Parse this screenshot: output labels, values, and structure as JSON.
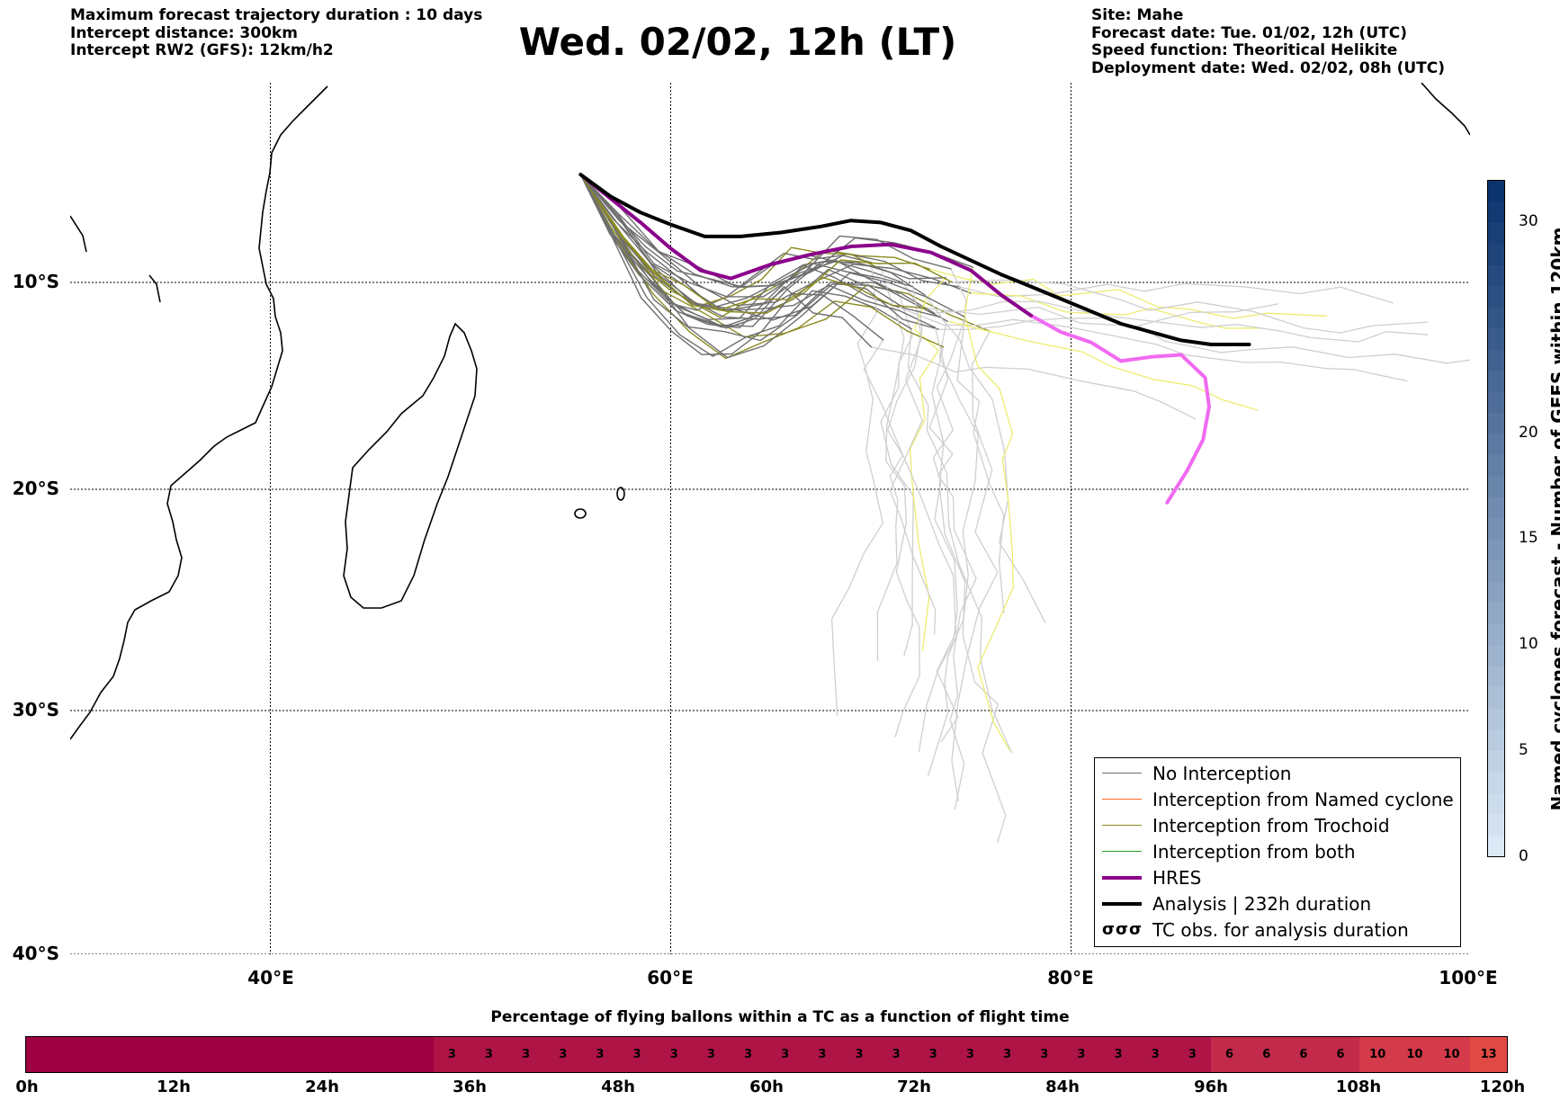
{
  "header": {
    "left_lines": [
      "Maximum forecast trajectory duration : 10 days",
      "Intercept distance: 300km",
      "Intercept RW2 (GFS):  12km/h2"
    ],
    "title": "Wed. 02/02, 12h (LT)",
    "right_lines": [
      "Site: Mahe",
      "Forecast date: Tue. 01/02, 12h (UTC)",
      "Speed function: Theoritical Helikite",
      "Deployment date: Wed. 02/02, 08h (UTC)"
    ]
  },
  "map": {
    "lon_labels": [
      "40°E",
      "60°E",
      "80°E",
      "100°E"
    ],
    "lat_labels": [
      "10°S",
      "20°S",
      "30°S",
      "40°S"
    ],
    "lon_values": [
      40,
      60,
      80,
      100
    ],
    "lat_values": [
      -10,
      -20,
      -30,
      -40
    ],
    "launch_site": {
      "lon": 55.5,
      "lat": -4.6
    },
    "colors": {
      "no_interception": "#6e6e6e",
      "named_cyclone": "#ff6a2a",
      "trochoid": "#8a8a20",
      "both": "#2a9a2a",
      "hres": "#8b008b",
      "analysis": "#000000",
      "after_window_hres": "#f06af0",
      "after_window_ens": "#cfcfcf",
      "after_window_trochoid": "#ecec70"
    },
    "analysis_track": [
      [
        55.5,
        -4.6
      ],
      [
        57,
        -5.7
      ],
      [
        58.5,
        -6.5
      ],
      [
        60,
        -7.1
      ],
      [
        61.7,
        -7.7
      ],
      [
        63.5,
        -7.7
      ],
      [
        65.5,
        -7.5
      ],
      [
        67.5,
        -7.2
      ],
      [
        69,
        -6.9
      ],
      [
        70.5,
        -7.0
      ],
      [
        72,
        -7.4
      ],
      [
        73.5,
        -8.2
      ],
      [
        75,
        -8.9
      ],
      [
        76.5,
        -9.6
      ],
      [
        78,
        -10.2
      ],
      [
        79.5,
        -10.8
      ],
      [
        81,
        -11.4
      ],
      [
        82.5,
        -12.0
      ],
      [
        84,
        -12.4
      ],
      [
        85.5,
        -12.8
      ],
      [
        87,
        -13.0
      ],
      [
        88.9,
        -13.0
      ]
    ],
    "hres_track": [
      [
        55.5,
        -4.6
      ],
      [
        57,
        -5.8
      ],
      [
        58.5,
        -7.0
      ],
      [
        60,
        -8.3
      ],
      [
        61.5,
        -9.4
      ],
      [
        63,
        -9.8
      ],
      [
        65,
        -9.1
      ],
      [
        67,
        -8.6
      ],
      [
        69,
        -8.2
      ],
      [
        71,
        -8.1
      ],
      [
        73,
        -8.5
      ],
      [
        75,
        -9.4
      ],
      [
        76.5,
        -10.6
      ],
      [
        78,
        -11.6
      ]
    ],
    "hres_after": [
      [
        78,
        -11.6
      ],
      [
        79.5,
        -12.4
      ],
      [
        81,
        -12.9
      ],
      [
        82.5,
        -13.8
      ],
      [
        84,
        -13.6
      ],
      [
        85.5,
        -13.5
      ],
      [
        86.7,
        -14.6
      ],
      [
        86.9,
        -16.0
      ],
      [
        86.6,
        -17.6
      ],
      [
        85.8,
        -19.1
      ],
      [
        84.8,
        -20.6
      ]
    ]
  },
  "legend": {
    "items": [
      {
        "label": "No Interception",
        "color": "#6e6e6e",
        "width": 1.5
      },
      {
        "label": "Interception from Named cyclone",
        "color": "#ff6a2a",
        "width": 1.5
      },
      {
        "label": "Interception from Trochoid",
        "color": "#8a8a20",
        "width": 1.5
      },
      {
        "label": "Interception from both",
        "color": "#2a9a2a",
        "width": 1.5
      },
      {
        "label": "HRES",
        "color": "#8b008b",
        "width": 4
      },
      {
        "label": "Analysis | 232h duration",
        "color": "#000000",
        "width": 4
      }
    ],
    "tc_symbol": "σσσ",
    "tc_label": "TC obs. for analysis duration"
  },
  "colorbar": {
    "label": "Named cyclones forecast - Number of GEFS within 120km",
    "min": 0,
    "max": 32,
    "ticks": [
      0,
      5,
      10,
      15,
      20,
      30
    ],
    "color_low": "#deebf7",
    "color_high": "#08306b"
  },
  "bottom_bar": {
    "title": "Percentage of flying ballons within a TC as a function of flight time",
    "values": [
      0,
      0,
      0,
      0,
      0,
      0,
      0,
      0,
      0,
      0,
      0,
      3,
      3,
      3,
      3,
      3,
      3,
      3,
      3,
      3,
      3,
      3,
      3,
      3,
      3,
      3,
      3,
      3,
      3,
      3,
      3,
      3,
      6,
      6,
      6,
      6,
      10,
      10,
      10,
      13
    ],
    "labels": [
      "0h",
      "12h",
      "24h",
      "36h",
      "48h",
      "60h",
      "72h",
      "84h",
      "96h",
      "108h",
      "120h"
    ],
    "colors": {
      "0": "#9e0040",
      "3": "#ae1446",
      "6": "#c12a4a",
      "10": "#d33a4a",
      "13": "#e04a44"
    }
  }
}
